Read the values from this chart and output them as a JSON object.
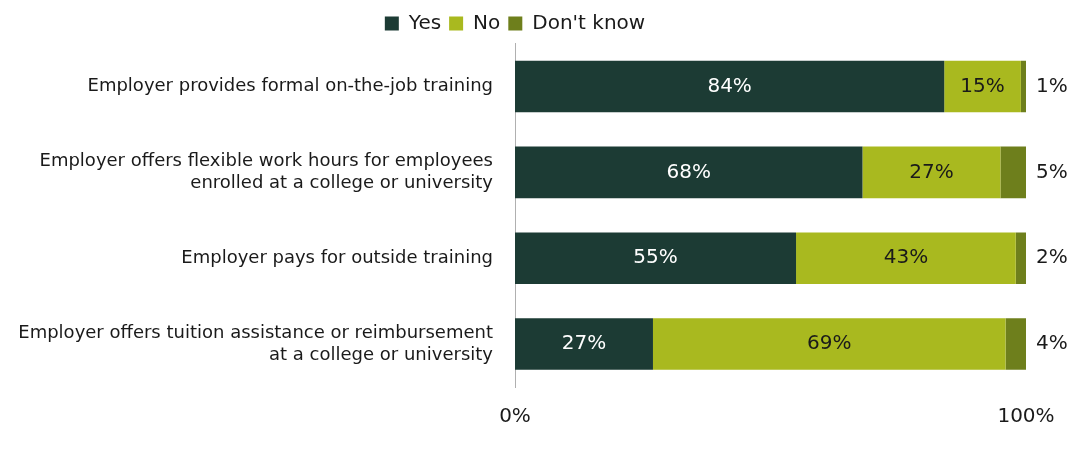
{
  "chart_data": {
    "type": "bar",
    "orientation": "horizontal",
    "stacked": true,
    "legend": "top",
    "grid": false,
    "categories": [
      "Employer provides formal on-the-job training",
      "Employer offers flexible work hours for employees enrolled at a college or university",
      "Employer pays for outside training",
      "Employer offers tuition assistance or reimbursement at a college or university"
    ],
    "series": [
      {
        "name": "Yes",
        "color": "#1c3b34",
        "values": [
          84,
          68,
          55,
          27
        ],
        "value_labels": [
          "84%",
          "68%",
          "55%",
          "27%"
        ]
      },
      {
        "name": "No",
        "color": "#a9b91f",
        "values": [
          15,
          27,
          43,
          69
        ],
        "value_labels": [
          "15%",
          "27%",
          "43%",
          "69%"
        ]
      },
      {
        "name": "Don't know",
        "color": "#6e7f1c",
        "values": [
          1,
          5,
          2,
          4
        ],
        "value_labels": [
          "1%",
          "5%",
          "2%",
          "4%"
        ]
      }
    ],
    "xlim": [
      0,
      100
    ],
    "xticks": [
      {
        "value": 0,
        "label": "0%"
      },
      {
        "value": 100,
        "label": "100%"
      }
    ]
  }
}
